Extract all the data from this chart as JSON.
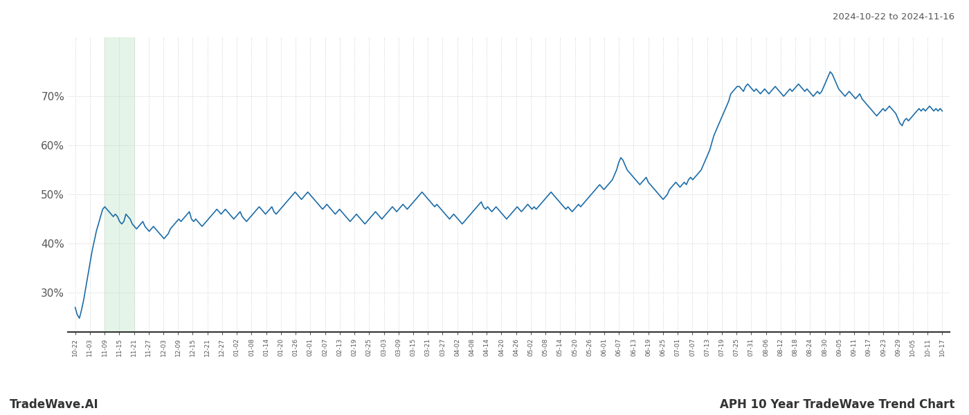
{
  "title_right": "2024-10-22 to 2024-11-16",
  "footer_left": "TradeWave.AI",
  "footer_right": "APH 10 Year TradeWave Trend Chart",
  "line_color": "#1b6ca8",
  "line_width": 1.2,
  "shade_color": "#d4edda",
  "shade_alpha": 0.6,
  "background_color": "#ffffff",
  "grid_color": "#cccccc",
  "x_tick_labels": [
    "10-22",
    "11-03",
    "11-09",
    "11-15",
    "11-21",
    "11-27",
    "12-03",
    "12-09",
    "12-15",
    "12-21",
    "12-27",
    "01-02",
    "01-08",
    "01-14",
    "01-20",
    "01-26",
    "02-01",
    "02-07",
    "02-13",
    "02-19",
    "02-25",
    "03-03",
    "03-09",
    "03-15",
    "03-21",
    "03-27",
    "04-02",
    "04-08",
    "04-14",
    "04-20",
    "04-26",
    "05-02",
    "05-08",
    "05-14",
    "05-20",
    "05-26",
    "06-01",
    "06-07",
    "06-13",
    "06-19",
    "06-25",
    "07-01",
    "07-07",
    "07-13",
    "07-19",
    "07-25",
    "07-31",
    "08-06",
    "08-12",
    "08-18",
    "08-24",
    "08-30",
    "09-05",
    "09-11",
    "09-17",
    "09-23",
    "09-29",
    "10-05",
    "10-11",
    "10-17"
  ],
  "shade_xstart_label": "11-09",
  "shade_xend_label": "11-21",
  "ylim_min": 22,
  "ylim_max": 82,
  "yticks": [
    30,
    40,
    50,
    60,
    70
  ],
  "y_values": [
    27.0,
    25.5,
    24.8,
    26.5,
    28.5,
    31.0,
    33.5,
    36.0,
    38.5,
    40.5,
    42.5,
    44.0,
    45.5,
    47.0,
    47.5,
    47.0,
    46.5,
    46.0,
    45.5,
    46.0,
    45.5,
    44.5,
    44.0,
    44.5,
    46.0,
    45.5,
    45.0,
    44.0,
    43.5,
    43.0,
    43.5,
    44.0,
    44.5,
    43.5,
    43.0,
    42.5,
    43.0,
    43.5,
    43.0,
    42.5,
    42.0,
    41.5,
    41.0,
    41.5,
    42.0,
    43.0,
    43.5,
    44.0,
    44.5,
    45.0,
    44.5,
    45.0,
    45.5,
    46.0,
    46.5,
    45.0,
    44.5,
    45.0,
    44.5,
    44.0,
    43.5,
    44.0,
    44.5,
    45.0,
    45.5,
    46.0,
    46.5,
    47.0,
    46.5,
    46.0,
    46.5,
    47.0,
    46.5,
    46.0,
    45.5,
    45.0,
    45.5,
    46.0,
    46.5,
    45.5,
    45.0,
    44.5,
    45.0,
    45.5,
    46.0,
    46.5,
    47.0,
    47.5,
    47.0,
    46.5,
    46.0,
    46.5,
    47.0,
    47.5,
    46.5,
    46.0,
    46.5,
    47.0,
    47.5,
    48.0,
    48.5,
    49.0,
    49.5,
    50.0,
    50.5,
    50.0,
    49.5,
    49.0,
    49.5,
    50.0,
    50.5,
    50.0,
    49.5,
    49.0,
    48.5,
    48.0,
    47.5,
    47.0,
    47.5,
    48.0,
    47.5,
    47.0,
    46.5,
    46.0,
    46.5,
    47.0,
    46.5,
    46.0,
    45.5,
    45.0,
    44.5,
    45.0,
    45.5,
    46.0,
    45.5,
    45.0,
    44.5,
    44.0,
    44.5,
    45.0,
    45.5,
    46.0,
    46.5,
    46.0,
    45.5,
    45.0,
    45.5,
    46.0,
    46.5,
    47.0,
    47.5,
    47.0,
    46.5,
    47.0,
    47.5,
    48.0,
    47.5,
    47.0,
    47.5,
    48.0,
    48.5,
    49.0,
    49.5,
    50.0,
    50.5,
    50.0,
    49.5,
    49.0,
    48.5,
    48.0,
    47.5,
    48.0,
    47.5,
    47.0,
    46.5,
    46.0,
    45.5,
    45.0,
    45.5,
    46.0,
    45.5,
    45.0,
    44.5,
    44.0,
    44.5,
    45.0,
    45.5,
    46.0,
    46.5,
    47.0,
    47.5,
    48.0,
    48.5,
    47.5,
    47.0,
    47.5,
    47.0,
    46.5,
    47.0,
    47.5,
    47.0,
    46.5,
    46.0,
    45.5,
    45.0,
    45.5,
    46.0,
    46.5,
    47.0,
    47.5,
    47.0,
    46.5,
    47.0,
    47.5,
    48.0,
    47.5,
    47.0,
    47.5,
    47.0,
    47.5,
    48.0,
    48.5,
    49.0,
    49.5,
    50.0,
    50.5,
    50.0,
    49.5,
    49.0,
    48.5,
    48.0,
    47.5,
    47.0,
    47.5,
    47.0,
    46.5,
    47.0,
    47.5,
    48.0,
    47.5,
    48.0,
    48.5,
    49.0,
    49.5,
    50.0,
    50.5,
    51.0,
    51.5,
    52.0,
    51.5,
    51.0,
    51.5,
    52.0,
    52.5,
    53.0,
    54.0,
    55.0,
    56.5,
    57.5,
    57.0,
    56.0,
    55.0,
    54.5,
    54.0,
    53.5,
    53.0,
    52.5,
    52.0,
    52.5,
    53.0,
    53.5,
    52.5,
    52.0,
    51.5,
    51.0,
    50.5,
    50.0,
    49.5,
    49.0,
    49.5,
    50.0,
    51.0,
    51.5,
    52.0,
    52.5,
    52.0,
    51.5,
    52.0,
    52.5,
    52.0,
    53.0,
    53.5,
    53.0,
    53.5,
    54.0,
    54.5,
    55.0,
    56.0,
    57.0,
    58.0,
    59.0,
    60.5,
    62.0,
    63.0,
    64.0,
    65.0,
    66.0,
    67.0,
    68.0,
    69.0,
    70.5,
    71.0,
    71.5,
    72.0,
    72.0,
    71.5,
    71.0,
    72.0,
    72.5,
    72.0,
    71.5,
    71.0,
    71.5,
    71.0,
    70.5,
    71.0,
    71.5,
    71.0,
    70.5,
    71.0,
    71.5,
    72.0,
    71.5,
    71.0,
    70.5,
    70.0,
    70.5,
    71.0,
    71.5,
    71.0,
    71.5,
    72.0,
    72.5,
    72.0,
    71.5,
    71.0,
    71.5,
    71.0,
    70.5,
    70.0,
    70.5,
    71.0,
    70.5,
    71.0,
    72.0,
    73.0,
    74.0,
    75.0,
    74.5,
    73.5,
    72.5,
    71.5,
    71.0,
    70.5,
    70.0,
    70.5,
    71.0,
    70.5,
    70.0,
    69.5,
    70.0,
    70.5,
    69.5,
    69.0,
    68.5,
    68.0,
    67.5,
    67.0,
    66.5,
    66.0,
    66.5,
    67.0,
    67.5,
    67.0,
    67.5,
    68.0,
    67.5,
    67.0,
    66.5,
    65.5,
    64.5,
    64.0,
    65.0,
    65.5,
    65.0,
    65.5,
    66.0,
    66.5,
    67.0,
    67.5,
    67.0,
    67.5,
    67.0,
    67.5,
    68.0,
    67.5,
    67.0,
    67.5,
    67.0,
    67.5,
    67.0
  ]
}
